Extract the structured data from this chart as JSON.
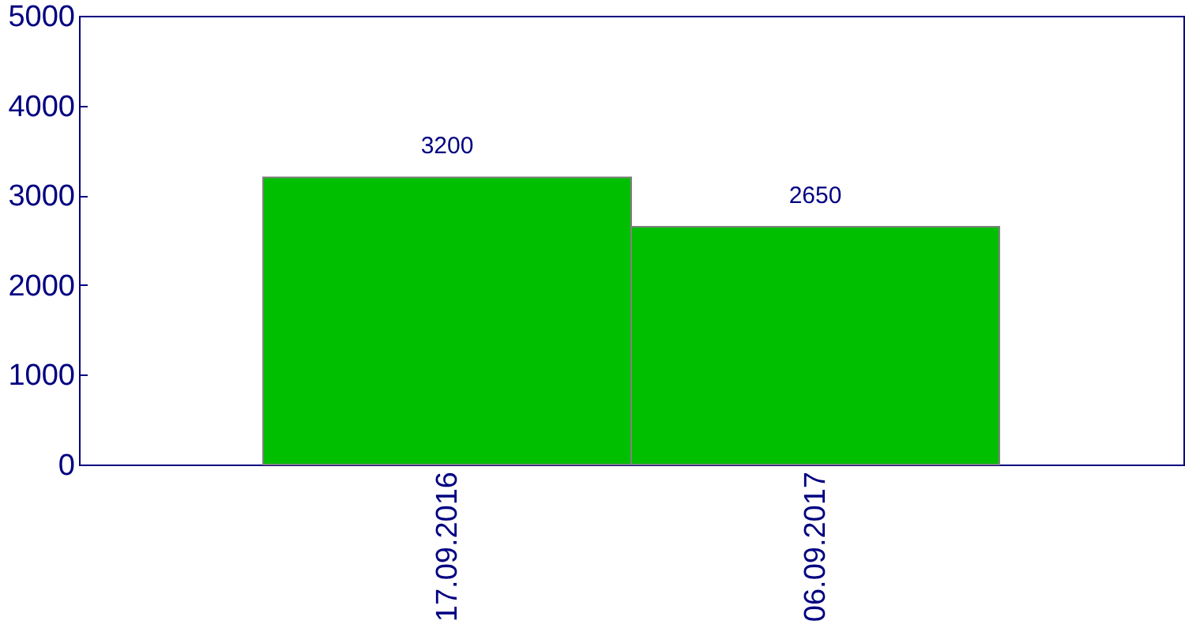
{
  "chart_data": {
    "type": "bar",
    "categories": [
      "17.09.2016",
      "06.09.2017"
    ],
    "values": [
      3200,
      2650
    ],
    "color": "#00bf00",
    "ylim": [
      0,
      5000
    ],
    "yticks": [
      0,
      1000,
      2000,
      3000,
      4000,
      5000
    ],
    "data_labels": true
  }
}
